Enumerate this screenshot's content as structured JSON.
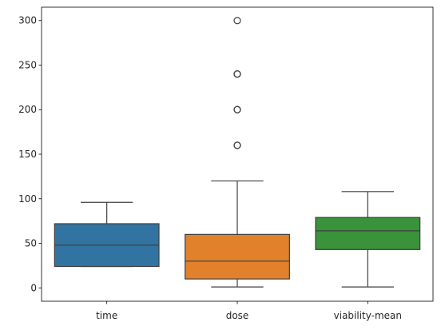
{
  "chart_data": {
    "type": "box",
    "title": "",
    "xlabel": "",
    "ylabel": "",
    "ylim": [
      -15,
      315
    ],
    "yticks": [
      0,
      50,
      100,
      150,
      200,
      250,
      300
    ],
    "ytick_labels": [
      "0",
      "50",
      "100",
      "150",
      "200",
      "250",
      "300"
    ],
    "grid": false,
    "categories": [
      "time",
      "dose",
      "viability-mean"
    ],
    "boxes": [
      {
        "category": "time",
        "color": "#3274a1",
        "whisker_low": 24,
        "q1": 24,
        "median": 48,
        "q3": 72,
        "whisker_high": 96,
        "outliers": []
      },
      {
        "category": "dose",
        "color": "#e1812c",
        "whisker_low": 1,
        "q1": 10,
        "median": 30,
        "q3": 60,
        "whisker_high": 120,
        "outliers": [
          160,
          160,
          200,
          200,
          240,
          240,
          300
        ]
      },
      {
        "category": "viability-mean",
        "color": "#3a923a",
        "whisker_low": 1,
        "q1": 43,
        "median": 64,
        "q3": 79,
        "whisker_high": 108,
        "outliers": []
      }
    ]
  }
}
